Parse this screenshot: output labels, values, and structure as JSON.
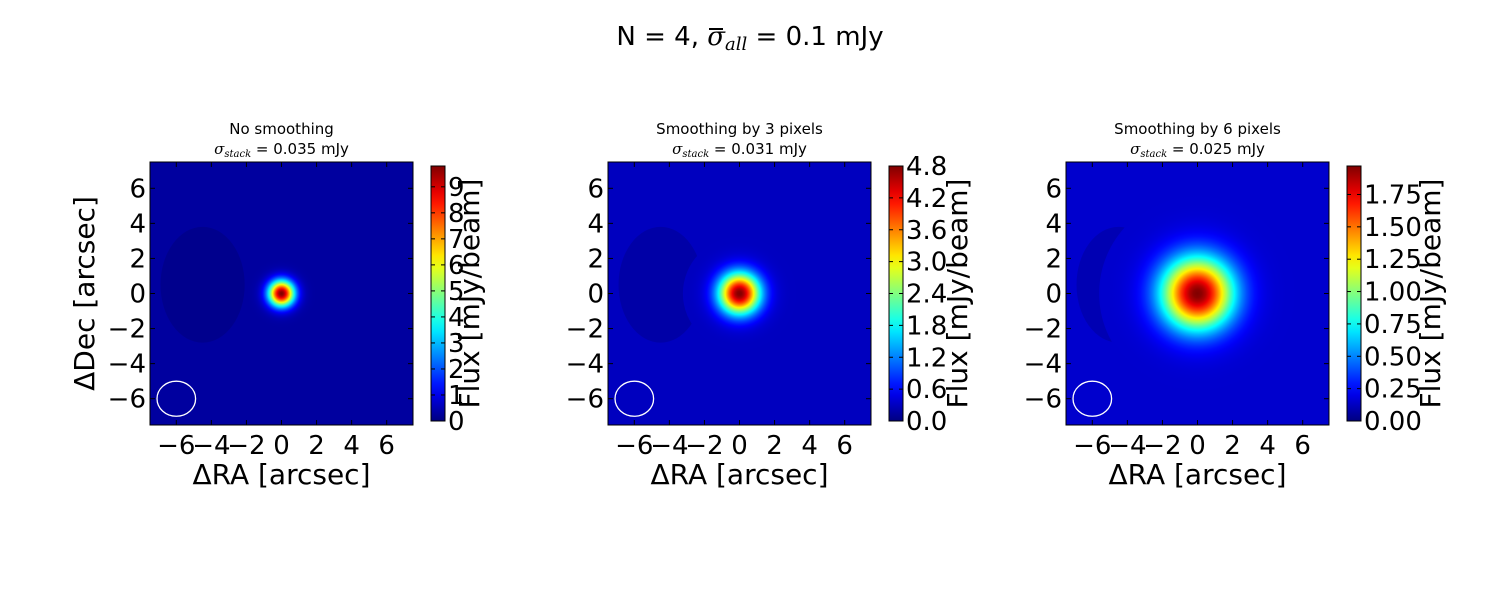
{
  "figure": {
    "title_prefix": "N = 4, ",
    "title_sigma": "σ",
    "title_subscript": "all",
    "title_suffix": " = 0.1 mJy"
  },
  "chart_data": [
    {
      "type": "heatmap",
      "title": "No smoothing",
      "subtitle_sigma": "σ",
      "subtitle_subscript": "stack",
      "subtitle_suffix": " = 0.035 mJy",
      "xlabel": "ΔRA [arcsec]",
      "ylabel": "ΔDec [arcsec]",
      "xlim": [
        -7.5,
        7.5
      ],
      "ylim": [
        -7.5,
        7.5
      ],
      "xticks": [
        "−6",
        "−4",
        "−2",
        "0",
        "2",
        "4",
        "6"
      ],
      "yticks": [
        "6",
        "4",
        "2",
        "0",
        "−2",
        "−4",
        "−6"
      ],
      "show_ylabel": true,
      "colormap": "jet",
      "colorbar": {
        "label": "Flux [mJy/beam]",
        "vmin": 0,
        "vmax": 9.8,
        "ticks": [
          "0",
          "1",
          "2",
          "3",
          "4",
          "5",
          "6",
          "7",
          "8",
          "9"
        ],
        "tick_values": [
          0,
          1,
          2,
          3,
          4,
          5,
          6,
          7,
          8,
          9
        ]
      },
      "source": {
        "x": 0,
        "y": 0,
        "peak_mjy": 9.8,
        "fwhm_arcsec": 1.2
      },
      "background_mjy": 0.3,
      "beam": {
        "x": -6,
        "y": -6,
        "width_arcsec": 2.2,
        "height_arcsec": 2.0
      }
    },
    {
      "type": "heatmap",
      "title": "Smoothing by 3 pixels",
      "subtitle_sigma": "σ",
      "subtitle_subscript": "stack",
      "subtitle_suffix": " = 0.031 mJy",
      "xlabel": "ΔRA [arcsec]",
      "ylabel": "",
      "xlim": [
        -7.5,
        7.5
      ],
      "ylim": [
        -7.5,
        7.5
      ],
      "xticks": [
        "−6",
        "−4",
        "−2",
        "0",
        "2",
        "4",
        "6"
      ],
      "yticks": [
        "6",
        "4",
        "2",
        "0",
        "−2",
        "−4",
        "−6"
      ],
      "show_ylabel": false,
      "colormap": "jet",
      "colorbar": {
        "label": "Flux [mJy/beam]",
        "vmin": 0,
        "vmax": 4.8,
        "ticks": [
          "0.0",
          "0.6",
          "1.2",
          "1.8",
          "2.4",
          "3.0",
          "3.6",
          "4.2",
          "4.8"
        ],
        "tick_values": [
          0,
          0.6,
          1.2,
          1.8,
          2.4,
          3.0,
          3.6,
          4.2,
          4.8
        ]
      },
      "source": {
        "x": 0,
        "y": 0,
        "peak_mjy": 4.8,
        "fwhm_arcsec": 1.9
      },
      "background_mjy": 0.3,
      "beam": {
        "x": -6,
        "y": -6,
        "width_arcsec": 2.2,
        "height_arcsec": 2.0
      }
    },
    {
      "type": "heatmap",
      "title": "Smoothing by 6 pixels",
      "subtitle_sigma": "σ",
      "subtitle_subscript": "stack",
      "subtitle_suffix": " = 0.025 mJy",
      "xlabel": "ΔRA [arcsec]",
      "ylabel": "",
      "xlim": [
        -7.5,
        7.5
      ],
      "ylim": [
        -7.5,
        7.5
      ],
      "xticks": [
        "−6",
        "−4",
        "−2",
        "0",
        "2",
        "4",
        "6"
      ],
      "yticks": [
        "6",
        "4",
        "2",
        "0",
        "−2",
        "−4",
        "−6"
      ],
      "show_ylabel": false,
      "colormap": "jet",
      "colorbar": {
        "label": "Flux [mJy/beam]",
        "vmin": 0,
        "vmax": 1.97,
        "ticks": [
          "0.00",
          "0.25",
          "0.50",
          "0.75",
          "1.00",
          "1.25",
          "1.50",
          "1.75"
        ],
        "tick_values": [
          0,
          0.25,
          0.5,
          0.75,
          1.0,
          1.25,
          1.5,
          1.75
        ]
      },
      "source": {
        "x": 0,
        "y": 0,
        "peak_mjy": 1.97,
        "fwhm_arcsec": 3.3
      },
      "background_mjy": 0.15,
      "beam": {
        "x": -6,
        "y": -6,
        "width_arcsec": 2.2,
        "height_arcsec": 2.0
      }
    }
  ]
}
